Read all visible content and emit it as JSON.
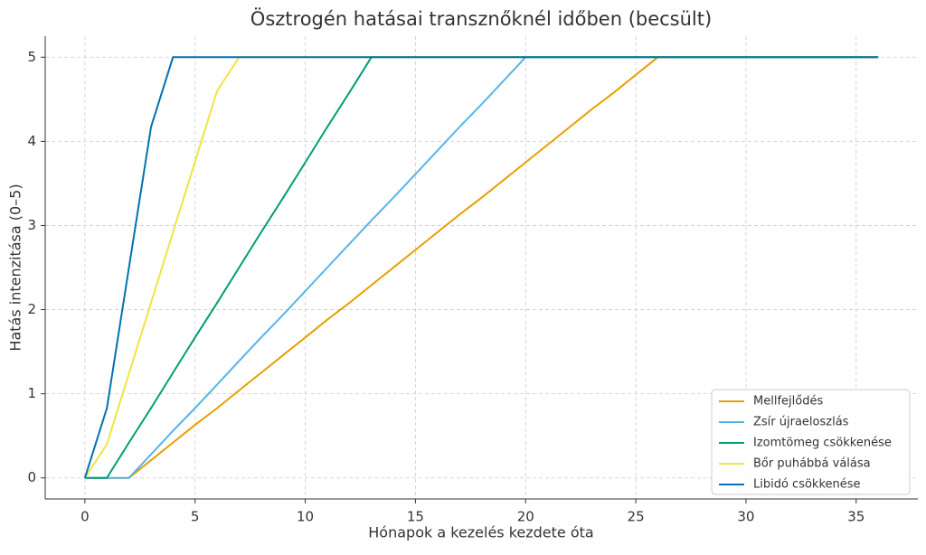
{
  "chart_data": {
    "type": "line",
    "title": "Ösztrogén hatásai transznőknél időben (becsült)",
    "x_label": "Hónapok a kezelés kezdete óta",
    "y_label": "Hatás intenzitása (0–5)",
    "x": [
      0,
      1,
      2,
      3,
      4,
      5,
      6,
      7,
      8,
      9,
      10,
      11,
      12,
      13,
      14,
      15,
      16,
      17,
      18,
      19,
      20,
      21,
      22,
      23,
      24,
      25,
      26,
      27,
      28,
      29,
      30,
      31,
      32,
      33,
      34,
      35,
      36
    ],
    "series": [
      {
        "name": "Mellfejlődés",
        "color": "#E69F00",
        "values": [
          0,
          0,
          0,
          0.21,
          0.42,
          0.63,
          0.83,
          1.04,
          1.25,
          1.46,
          1.67,
          1.88,
          2.08,
          2.29,
          2.5,
          2.71,
          2.92,
          3.13,
          3.33,
          3.54,
          3.75,
          3.96,
          4.17,
          4.38,
          4.58,
          4.79,
          5,
          5,
          5,
          5,
          5,
          5,
          5,
          5,
          5,
          5,
          5
        ]
      },
      {
        "name": "Zsír újraeloszlás",
        "color": "#56B4E9",
        "values": [
          0,
          0,
          0,
          0.28,
          0.56,
          0.83,
          1.11,
          1.39,
          1.67,
          1.94,
          2.22,
          2.5,
          2.78,
          3.06,
          3.33,
          3.61,
          3.89,
          4.17,
          4.44,
          4.72,
          5,
          5,
          5,
          5,
          5,
          5,
          5,
          5,
          5,
          5,
          5,
          5,
          5,
          5,
          5,
          5,
          5
        ]
      },
      {
        "name": "Izomtömeg csökkenése",
        "color": "#009E73",
        "values": [
          0,
          0,
          0.42,
          0.83,
          1.25,
          1.67,
          2.08,
          2.5,
          2.92,
          3.33,
          3.75,
          4.17,
          4.58,
          5,
          5,
          5,
          5,
          5,
          5,
          5,
          5,
          5,
          5,
          5,
          5,
          5,
          5,
          5,
          5,
          5,
          5,
          5,
          5,
          5,
          5,
          5,
          5
        ]
      },
      {
        "name": "Bőr puhábbá válása",
        "color": "#F0E442",
        "values": [
          0,
          0.4,
          1.24,
          2.08,
          2.92,
          3.76,
          4.6,
          5,
          5,
          5,
          5,
          5,
          5,
          5,
          5,
          5,
          5,
          5,
          5,
          5,
          5,
          5,
          5,
          5,
          5,
          5,
          5,
          5,
          5,
          5,
          5,
          5,
          5,
          5,
          5,
          5,
          5
        ]
      },
      {
        "name": "Libidó csökkenése",
        "color": "#0072B2",
        "values": [
          0,
          0.83,
          2.5,
          4.17,
          5,
          5,
          5,
          5,
          5,
          5,
          5,
          5,
          5,
          5,
          5,
          5,
          5,
          5,
          5,
          5,
          5,
          5,
          5,
          5,
          5,
          5,
          5,
          5,
          5,
          5,
          5,
          5,
          5,
          5,
          5,
          5,
          5
        ]
      }
    ],
    "xlim": [
      -1.8,
      37.8
    ],
    "ylim": [
      -0.25,
      5.25
    ],
    "xticks": [
      0,
      5,
      10,
      15,
      20,
      25,
      30,
      35
    ],
    "yticks": [
      0,
      1,
      2,
      3,
      4,
      5
    ],
    "grid": true,
    "legend": "lower right"
  }
}
